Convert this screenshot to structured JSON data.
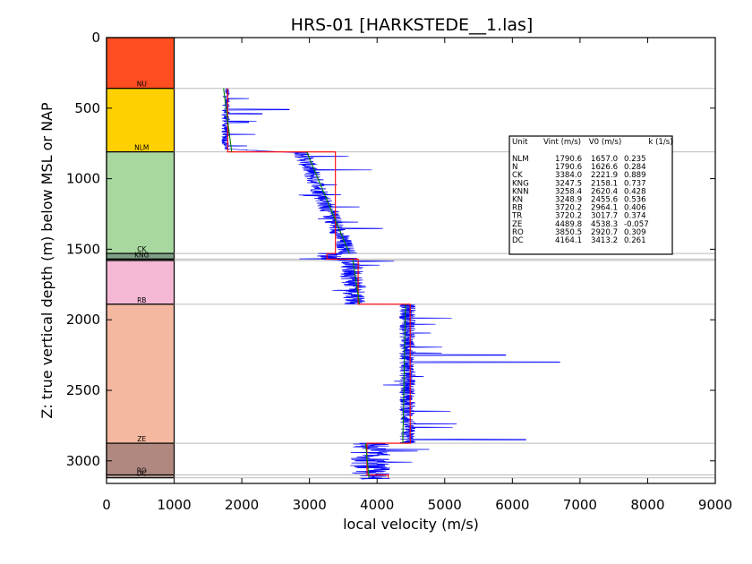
{
  "chart_data": {
    "type": "line",
    "title": "HRS-01 [HARKSTEDE__1.las]",
    "xlabel": "local velocity (m/s)",
    "ylabel": "Z: true vertical depth (m) below MSL or NAP",
    "xlim": [
      0,
      9000
    ],
    "ylim": [
      3160,
      0
    ],
    "y_inverted": true,
    "x_ticks": [
      "0",
      "1000",
      "2000",
      "3000",
      "4000",
      "5000",
      "6000",
      "7000",
      "8000",
      "9000"
    ],
    "y_ticks": [
      "0",
      "500",
      "1000",
      "1500",
      "2000",
      "2500",
      "3000"
    ],
    "legend_location": "upper-right",
    "colors": {
      "log": "#0000ff",
      "interval_velocity": "#ff0000",
      "linear_fit": "#008000",
      "boundary_line": "#bbbbbb"
    },
    "stratigraphy": [
      {
        "unit": "NU",
        "top": 0,
        "base": 360,
        "color": "#ff4d22"
      },
      {
        "unit": "NLM",
        "top": 360,
        "base": 810,
        "color": "#ffd000"
      },
      {
        "unit": "CK",
        "top": 810,
        "base": 1530,
        "color": "#a8d8a0"
      },
      {
        "unit": "KNN",
        "top": 1530,
        "base": 1570,
        "color": "#7f9f86"
      },
      {
        "unit": "KNG",
        "top": 1570,
        "base": 1580,
        "color": "#6a8a72"
      },
      {
        "unit": "RB",
        "top": 1580,
        "base": 1890,
        "color": "#f4b8d4"
      },
      {
        "unit": "ZE",
        "top": 1890,
        "base": 2875,
        "color": "#f4b8a0"
      },
      {
        "unit": "RO",
        "top": 2875,
        "base": 3100,
        "color": "#b08880"
      },
      {
        "unit": "DC",
        "top": 3100,
        "base": 3120,
        "color": "#b8a098"
      }
    ],
    "stratigraphy_labels": [
      {
        "text": "NU",
        "depth": 360
      },
      {
        "text": "NLM",
        "depth": 810
      },
      {
        "text": "CK",
        "depth": 1530
      },
      {
        "text": "KNG",
        "depth": 1570
      },
      {
        "text": "RB",
        "depth": 1890
      },
      {
        "text": "ZE",
        "depth": 2875
      },
      {
        "text": "RO",
        "depth": 3100
      },
      {
        "text": "DC",
        "depth": 3120
      }
    ],
    "interval_velocity_steps": [
      {
        "top": 360,
        "base": 810,
        "v": 1790.6
      },
      {
        "top": 810,
        "base": 1530,
        "v": 3384.0
      },
      {
        "top": 1530,
        "base": 1570,
        "v": 3258.4
      },
      {
        "top": 1570,
        "base": 1890,
        "v": 3720.2
      },
      {
        "top": 1890,
        "base": 2875,
        "v": 4489.8
      },
      {
        "top": 2875,
        "base": 3100,
        "v": 3850.5
      },
      {
        "top": 3100,
        "base": 3120,
        "v": 4164.1
      }
    ],
    "linear_fit_segments": [
      {
        "z": [
          360,
          810
        ],
        "v": [
          1730,
          1850
        ]
      },
      {
        "z": [
          810,
          1530
        ],
        "v": [
          2960,
          3590
        ]
      },
      {
        "z": [
          1570,
          1890
        ],
        "v": [
          3640,
          3740
        ]
      },
      {
        "z": [
          1890,
          2875
        ],
        "v": [
          4420,
          4380
        ]
      },
      {
        "z": [
          2875,
          3120
        ],
        "v": [
          3830,
          3880
        ]
      }
    ],
    "table": {
      "headers": [
        "Unit",
        "Vint (m/s)",
        "V0 (m/s)",
        "k (1/s)"
      ],
      "rows": [
        [
          "NLM",
          "1790.6",
          "1657.0",
          "0.235"
        ],
        [
          "N",
          "1790.6",
          "1626.6",
          "0.284"
        ],
        [
          "CK",
          "3384.0",
          "2221.9",
          "0.889"
        ],
        [
          "KNG",
          "3247.5",
          "2158.1",
          "0.737"
        ],
        [
          "KNN",
          "3258.4",
          "2620.4",
          "0.428"
        ],
        [
          "KN",
          "3248.9",
          "2455.6",
          "0.536"
        ],
        [
          "RB",
          "3720.2",
          "2964.1",
          "0.406"
        ],
        [
          "TR",
          "3720.2",
          "3017.7",
          "0.374"
        ],
        [
          "ZE",
          "4489.8",
          "4538.3",
          "-0.057"
        ],
        [
          "RO",
          "3850.5",
          "2920.7",
          "0.309"
        ],
        [
          "DC",
          "4164.1",
          "3413.2",
          "0.261"
        ]
      ]
    }
  }
}
